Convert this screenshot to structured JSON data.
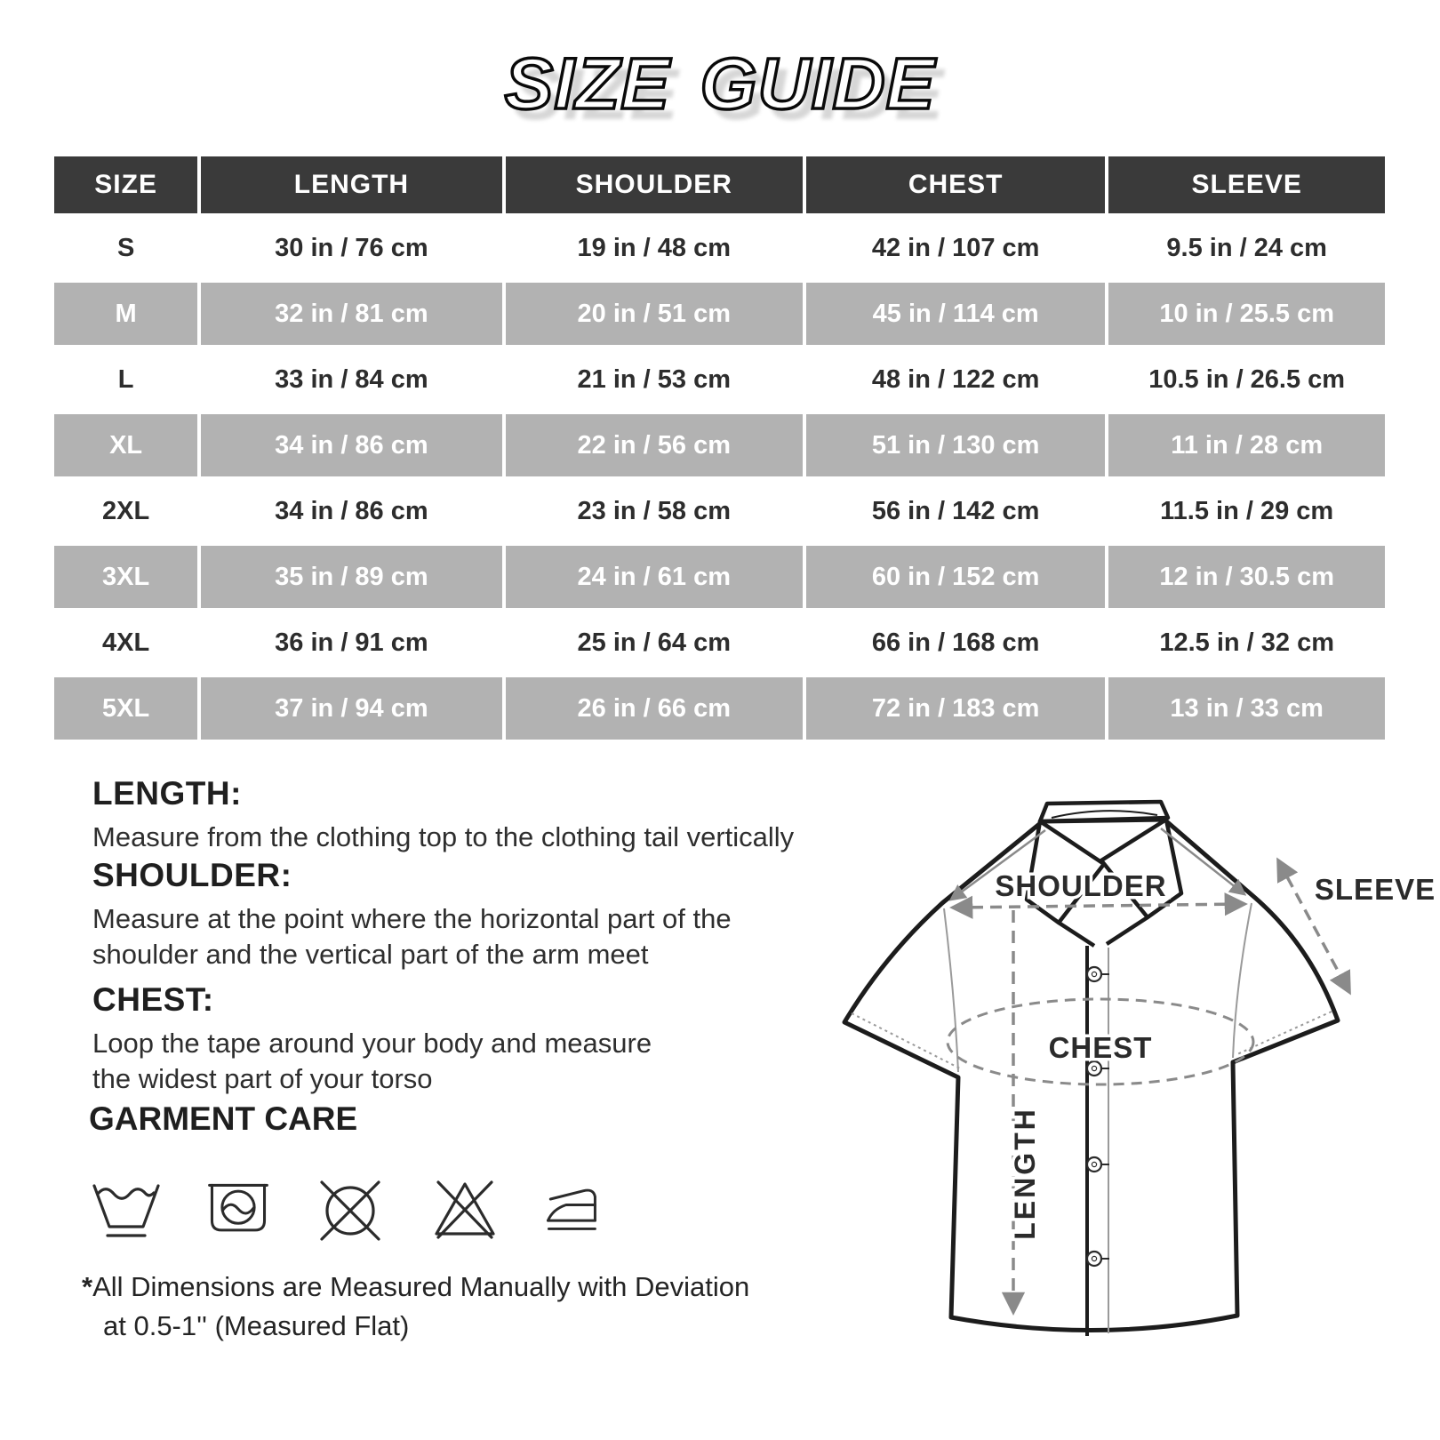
{
  "title": "SIZE GUIDE",
  "table": {
    "columns": [
      "SIZE",
      "LENGTH",
      "SHOULDER",
      "CHEST",
      "SLEEVE"
    ],
    "rows": [
      {
        "size": "S",
        "length": "30 in / 76 cm",
        "shoulder": "19 in / 48 cm",
        "chest": "42 in / 107 cm",
        "sleeve": "9.5 in / 24 cm",
        "shaded": false
      },
      {
        "size": "M",
        "length": "32 in / 81 cm",
        "shoulder": "20 in / 51 cm",
        "chest": "45 in / 114 cm",
        "sleeve": "10 in / 25.5 cm",
        "shaded": true
      },
      {
        "size": "L",
        "length": "33 in / 84 cm",
        "shoulder": "21 in / 53 cm",
        "chest": "48 in / 122 cm",
        "sleeve": "10.5 in / 26.5 cm",
        "shaded": false
      },
      {
        "size": "XL",
        "length": "34 in / 86 cm",
        "shoulder": "22 in / 56 cm",
        "chest": "51 in / 130 cm",
        "sleeve": "11 in / 28 cm",
        "shaded": true
      },
      {
        "size": "2XL",
        "length": "34 in / 86 cm",
        "shoulder": "23 in / 58 cm",
        "chest": "56 in / 142 cm",
        "sleeve": "11.5 in / 29 cm",
        "shaded": false
      },
      {
        "size": "3XL",
        "length": "35 in / 89 cm",
        "shoulder": "24 in / 61 cm",
        "chest": "60 in / 152 cm",
        "sleeve": "12 in / 30.5 cm",
        "shaded": true
      },
      {
        "size": "4XL",
        "length": "36 in / 91 cm",
        "shoulder": "25 in / 64 cm",
        "chest": "66 in / 168 cm",
        "sleeve": "12.5 in / 32 cm",
        "shaded": false
      },
      {
        "size": "5XL",
        "length": "37 in / 94 cm",
        "shoulder": "26 in / 66 cm",
        "chest": "72 in / 183 cm",
        "sleeve": "13 in / 33 cm",
        "shaded": true
      }
    ]
  },
  "sections": [
    {
      "heading": "LENGTH:",
      "body": "Measure from the clothing top to the clothing tail vertically"
    },
    {
      "heading": "SHOULDER:",
      "body": "Measure at the point where the horizontal part of the\nshoulder and the vertical part of the arm meet"
    },
    {
      "heading": "CHEST:",
      "body": "Loop the tape around your body and measure\nthe widest part of your torso"
    }
  ],
  "garment_care": {
    "heading": "GARMENT CARE",
    "icons": [
      "gentle-wash",
      "machine-wash",
      "do-not-dry-clean",
      "do-not-bleach",
      "iron"
    ]
  },
  "disclaimer": {
    "star": "*",
    "line1": "All Dimensions are Measured Manually with Deviation",
    "line2": "at 0.5-1''  (Measured Flat)"
  },
  "diagram": {
    "shoulder_label": "SHOULDER",
    "sleeve_label": "SLEEVE",
    "chest_label": "CHEST",
    "length_label": "LENGTH"
  },
  "colors": {
    "header_bg": "#3a3a3a",
    "shaded_row_bg": "#b2b2b2",
    "dark_text": "#2d2d2d",
    "annotation_gray": "#8a8a8a"
  }
}
